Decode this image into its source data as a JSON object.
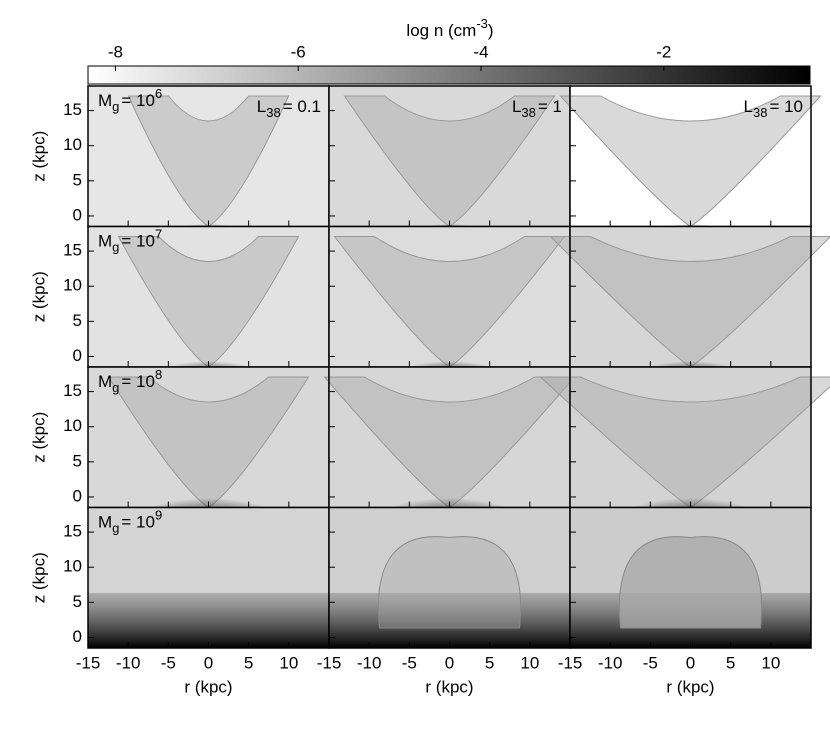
{
  "chart_data": {
    "type": "panel-grid",
    "colorbar": {
      "label": {
        "text": "log n (cm",
        "sup": "-3",
        "tail": ")"
      },
      "lim": [
        -8.3,
        -0.4
      ],
      "ticks": [
        -8,
        -6,
        -4,
        -2
      ],
      "colors": [
        "#ffffff",
        "#000000"
      ]
    },
    "xlabel": "r (kpc)",
    "ylabel": "z (kpc)",
    "xlim": [
      -15,
      15
    ],
    "xticks": [
      -15,
      -10,
      -5,
      0,
      5,
      10
    ],
    "ylim": [
      -1.5,
      18.5
    ],
    "yticks": [
      0,
      5,
      10,
      15
    ],
    "row_labels": [
      {
        "base": "M",
        "sub": "g",
        "eq": "= 10",
        "sup": "6"
      },
      {
        "base": "M",
        "sub": "g",
        "eq": "= 10",
        "sup": "7"
      },
      {
        "base": "M",
        "sub": "g",
        "eq": "= 10",
        "sup": "8"
      },
      {
        "base": "M",
        "sub": "g",
        "eq": "= 10",
        "sup": "9"
      }
    ],
    "column_labels": [
      {
        "base": "L",
        "sub": "38",
        "eq": "= 0.1"
      },
      {
        "base": "L",
        "sub": "38",
        "eq": "= 1"
      },
      {
        "base": "L",
        "sub": "38",
        "eq": "= 10"
      }
    ]
  }
}
